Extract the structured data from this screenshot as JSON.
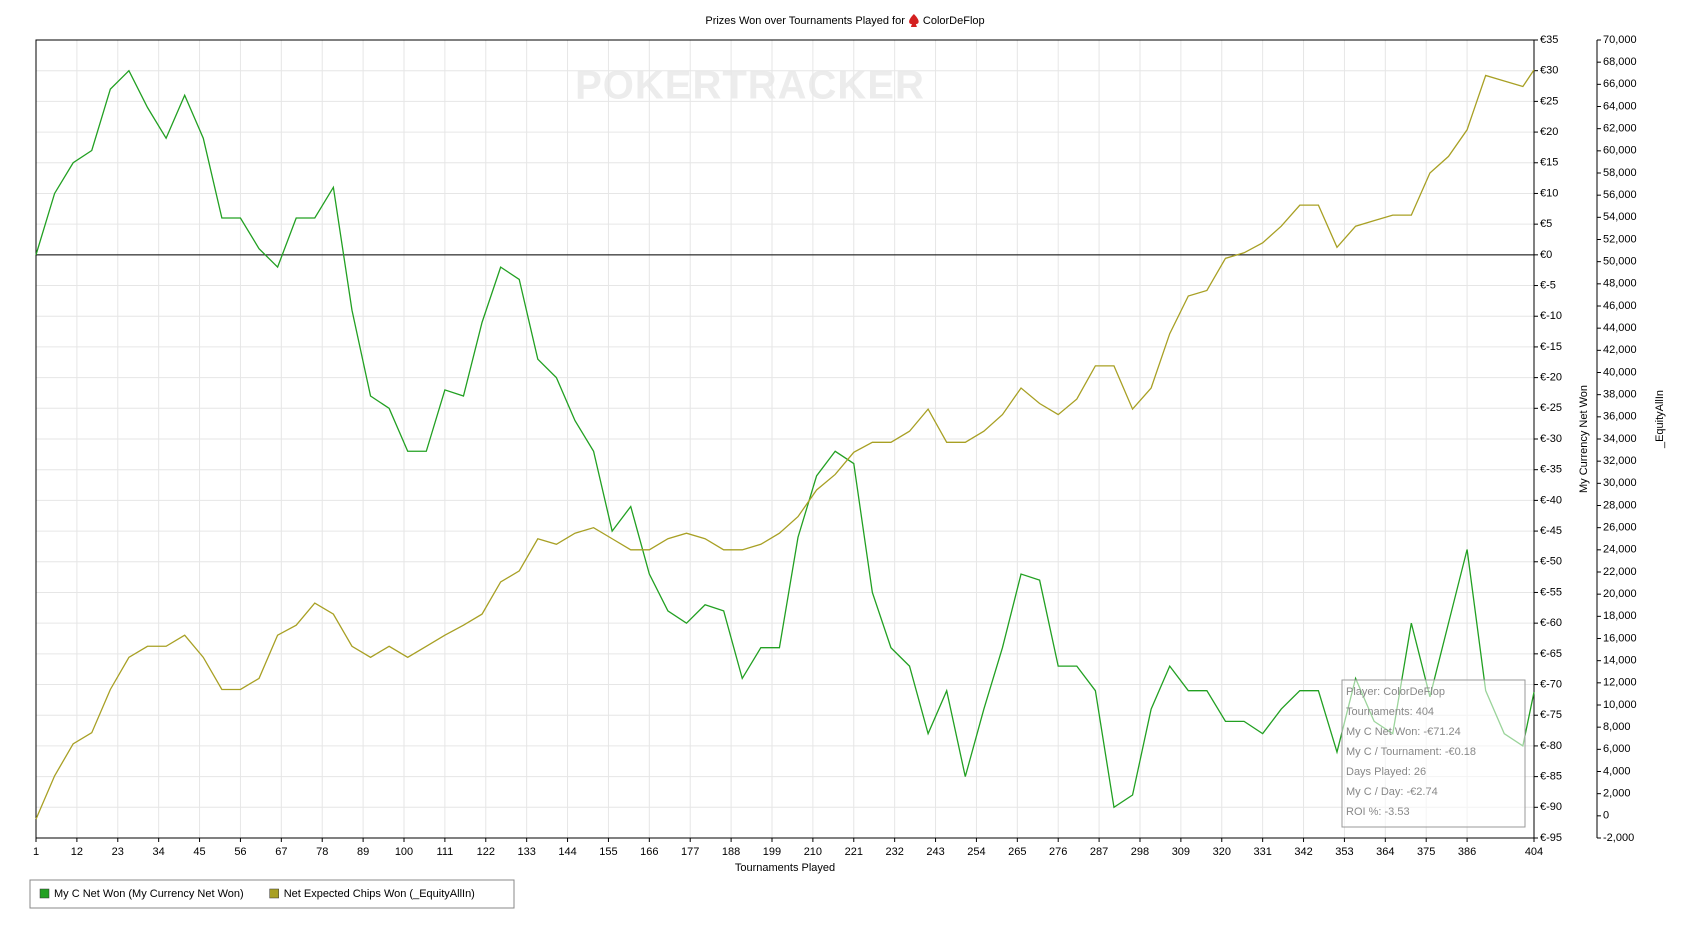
{
  "chart_data": {
    "type": "line",
    "title": "Prizes Won over Tournaments Played for",
    "title_player": "ColorDeFlop",
    "watermark": "POKERTRACKER",
    "x_label": "Tournaments Played",
    "y_label": "My Currency Net Won",
    "y2_label": "_EquityAllIn",
    "grid": true,
    "legend": "bottom-left",
    "x": [
      1,
      6,
      11,
      16,
      21,
      26,
      31,
      36,
      41,
      46,
      51,
      56,
      61,
      66,
      71,
      76,
      81,
      86,
      91,
      96,
      101,
      106,
      111,
      116,
      121,
      126,
      131,
      136,
      141,
      146,
      151,
      156,
      161,
      166,
      171,
      176,
      181,
      186,
      191,
      196,
      201,
      206,
      211,
      216,
      221,
      226,
      231,
      236,
      241,
      246,
      251,
      256,
      261,
      266,
      271,
      276,
      281,
      286,
      291,
      296,
      301,
      306,
      311,
      316,
      321,
      326,
      331,
      336,
      341,
      346,
      351,
      356,
      361,
      366,
      371,
      376,
      381,
      386,
      391,
      396,
      401,
      404
    ],
    "series": [
      {
        "name": "My C Net Won (My Currency Net Won)",
        "color": "#22a022",
        "values": [
          0,
          10,
          15,
          17,
          27,
          30,
          24,
          19,
          26,
          19,
          6,
          6,
          1,
          -2,
          6,
          6,
          11,
          -9,
          -23,
          -25,
          -32,
          -32,
          -22,
          -23,
          -11,
          -2,
          -4,
          -17,
          -20,
          -27,
          -32,
          -45,
          -41,
          -52,
          -58,
          -60,
          -57,
          -58,
          -69,
          -64,
          -64,
          -46,
          -36,
          -32,
          -34,
          -55,
          -64,
          -67,
          -78,
          -71,
          -85,
          -74,
          -64,
          -52,
          -53,
          -67,
          -67,
          -71,
          -90,
          -88,
          -74,
          -67,
          -71,
          -71,
          -76,
          -76,
          -78,
          -74,
          -71,
          -71,
          -81,
          -69,
          -76,
          -78,
          -60,
          -72,
          -60,
          -48,
          -71,
          -78,
          -80,
          -71.24
        ]
      },
      {
        "name": "Net Expected Chips Won (_EquityAllIn)",
        "color": "#a8a024",
        "axis": "y2",
        "values": [
          -300,
          3600,
          6500,
          7500,
          11400,
          14300,
          15300,
          15300,
          16300,
          14300,
          11400,
          11400,
          12400,
          16300,
          17200,
          19200,
          18200,
          15300,
          14300,
          15300,
          14300,
          15300,
          16300,
          17200,
          18200,
          21100,
          22100,
          25000,
          24500,
          25500,
          26000,
          25000,
          24000,
          24000,
          25000,
          25500,
          25000,
          24000,
          24000,
          24500,
          25500,
          27000,
          29400,
          30800,
          32800,
          33700,
          33700,
          34700,
          36700,
          33700,
          33700,
          34700,
          36200,
          38600,
          37200,
          36200,
          37600,
          40600,
          40600,
          36700,
          38600,
          43500,
          46900,
          47400,
          50300,
          50800,
          51700,
          53200,
          55100,
          55100,
          51300,
          53200,
          53700,
          54200,
          54200,
          58000,
          59500,
          61900,
          66800,
          66300,
          65800,
          67300
        ]
      }
    ],
    "xlim": [
      1,
      404
    ],
    "xticks": [
      1,
      12,
      23,
      34,
      45,
      56,
      67,
      78,
      89,
      100,
      111,
      122,
      133,
      144,
      155,
      166,
      177,
      188,
      199,
      210,
      221,
      232,
      243,
      254,
      265,
      276,
      287,
      298,
      309,
      320,
      331,
      342,
      353,
      364,
      375,
      386,
      404
    ],
    "ylim": [
      -95,
      35
    ],
    "yticks": [
      {
        "value": 35,
        "label": "€35"
      },
      {
        "value": 30,
        "label": "€30"
      },
      {
        "value": 25,
        "label": "€25"
      },
      {
        "value": 20,
        "label": "€20"
      },
      {
        "value": 15,
        "label": "€15"
      },
      {
        "value": 10,
        "label": "€10"
      },
      {
        "value": 5,
        "label": "€5"
      },
      {
        "value": 0,
        "label": "€0"
      },
      {
        "value": -5,
        "label": "€-5"
      },
      {
        "value": -10,
        "label": "€-10"
      },
      {
        "value": -15,
        "label": "€-15"
      },
      {
        "value": -20,
        "label": "€-20"
      },
      {
        "value": -25,
        "label": "€-25"
      },
      {
        "value": -30,
        "label": "€-30"
      },
      {
        "value": -35,
        "label": "€-35"
      },
      {
        "value": -40,
        "label": "€-40"
      },
      {
        "value": -45,
        "label": "€-45"
      },
      {
        "value": -50,
        "label": "€-50"
      },
      {
        "value": -55,
        "label": "€-55"
      },
      {
        "value": -60,
        "label": "€-60"
      },
      {
        "value": -65,
        "label": "€-65"
      },
      {
        "value": -70,
        "label": "€-70"
      },
      {
        "value": -75,
        "label": "€-75"
      },
      {
        "value": -80,
        "label": "€-80"
      },
      {
        "value": -85,
        "label": "€-85"
      },
      {
        "value": -90,
        "label": "€-90"
      },
      {
        "value": -95,
        "label": "€-95"
      }
    ],
    "y2lim": [
      -2000,
      70000
    ],
    "y2ticks": [
      {
        "value": 70000,
        "label": "70,000"
      },
      {
        "value": 68000,
        "label": "68,000"
      },
      {
        "value": 66000,
        "label": "66,000"
      },
      {
        "value": 64000,
        "label": "64,000"
      },
      {
        "value": 62000,
        "label": "62,000"
      },
      {
        "value": 60000,
        "label": "60,000"
      },
      {
        "value": 58000,
        "label": "58,000"
      },
      {
        "value": 56000,
        "label": "56,000"
      },
      {
        "value": 54000,
        "label": "54,000"
      },
      {
        "value": 52000,
        "label": "52,000"
      },
      {
        "value": 50000,
        "label": "50,000"
      },
      {
        "value": 48000,
        "label": "48,000"
      },
      {
        "value": 46000,
        "label": "46,000"
      },
      {
        "value": 44000,
        "label": "44,000"
      },
      {
        "value": 42000,
        "label": "42,000"
      },
      {
        "value": 40000,
        "label": "40,000"
      },
      {
        "value": 38000,
        "label": "38,000"
      },
      {
        "value": 36000,
        "label": "36,000"
      },
      {
        "value": 34000,
        "label": "34,000"
      },
      {
        "value": 32000,
        "label": "32,000"
      },
      {
        "value": 30000,
        "label": "30,000"
      },
      {
        "value": 28000,
        "label": "28,000"
      },
      {
        "value": 26000,
        "label": "26,000"
      },
      {
        "value": 24000,
        "label": "24,000"
      },
      {
        "value": 22000,
        "label": "22,000"
      },
      {
        "value": 20000,
        "label": "20,000"
      },
      {
        "value": 18000,
        "label": "18,000"
      },
      {
        "value": 16000,
        "label": "16,000"
      },
      {
        "value": 14000,
        "label": "14,000"
      },
      {
        "value": 12000,
        "label": "12,000"
      },
      {
        "value": 10000,
        "label": "10,000"
      },
      {
        "value": 8000,
        "label": "8,000"
      },
      {
        "value": 6000,
        "label": "6,000"
      },
      {
        "value": 4000,
        "label": "4,000"
      },
      {
        "value": 2000,
        "label": "2,000"
      },
      0,
      {
        "value": -2000,
        "label": "-2,000"
      }
    ],
    "annotations": [
      "Player: ColorDeFlop",
      "Tournaments: 404",
      "My C Net Won: -€71.24",
      "My C / Tournament: -€0.18",
      "Days Played: 26",
      "My C / Day: -€2.74",
      "ROI %: -3.53"
    ]
  }
}
